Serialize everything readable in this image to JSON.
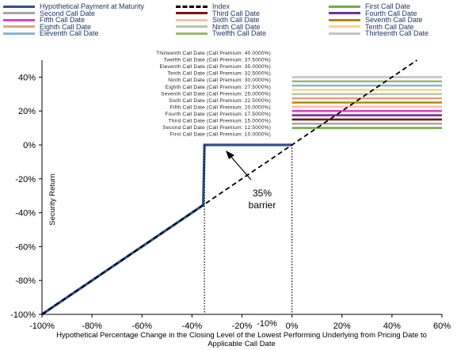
{
  "chart_data": {
    "type": "line",
    "title": "",
    "xlabel_lines": [
      "Hypothetical Percentage Change in the Closing Level of the Lowest Performing Underlying from Pricing Date to",
      "Applicable Call Date"
    ],
    "ylabel": "Security Return",
    "xlim": [
      -100,
      60
    ],
    "ylim": [
      -100,
      50
    ],
    "xticks": [
      "-100%",
      "-80%",
      "-60%",
      "-40%",
      "-20%",
      "0%",
      "20%",
      "40%",
      "60%"
    ],
    "xtick_values": [
      -100,
      -80,
      -60,
      -40,
      -20,
      0,
      20,
      40,
      60
    ],
    "extra_xtick": {
      "label": "-10%",
      "value": -10
    },
    "yticks": [
      "-100%",
      "-80%",
      "-60%",
      "-40%",
      "-20%",
      "0%",
      "20%",
      "40%"
    ],
    "ytick_values": [
      -100,
      -80,
      -60,
      -40,
      -20,
      0,
      20,
      40
    ],
    "barrier_label_lines": [
      "35%",
      "barrier"
    ],
    "barrier_x": -35,
    "series": [
      {
        "name": "Hypothetical Payment at Maturity",
        "color": "#2e4f8f",
        "style": "solid",
        "x": [
          -100,
          -35.5,
          -35,
          0
        ],
        "y": [
          -100,
          -35.5,
          0,
          0
        ]
      },
      {
        "name": "Index",
        "color": "#000000",
        "style": "dashed",
        "x": [
          -100,
          50
        ],
        "y": [
          -100,
          50
        ]
      },
      {
        "name": "First Call Date",
        "color": "#70ad47",
        "premium": 10.0,
        "label": "First Call Date (Call Premium: 10.0000%)"
      },
      {
        "name": "Second Call Date",
        "color": "#a5a5a5",
        "premium": 12.5,
        "label": "Second Call Date (Call Premium: 12.5000%)"
      },
      {
        "name": "Third Call Date",
        "color": "#7b1414",
        "premium": 15.0,
        "label": "Third Call Date (Call Premium: 15.0000%)"
      },
      {
        "name": "Fourth Call Date",
        "color": "#7030a0",
        "premium": 17.5,
        "label": "Fourth Call Date (Call Premium: 17.5000%)"
      },
      {
        "name": "Fifth Call Date",
        "color": "#e040c8",
        "premium": 20.0,
        "label": "Fifth Call Date (Call Premium: 20.0000%)"
      },
      {
        "name": "Sixth Call Date",
        "color": "#f4c3a4",
        "premium": 22.5,
        "label": "Sixth Call Date (Call Premium: 22.5000%)"
      },
      {
        "name": "Seventh Call Date",
        "color": "#b8860b",
        "premium": 25.0,
        "label": "Seventh Call Date (Call Premium: 25.0000%)"
      },
      {
        "name": "Eighth Call Date",
        "color": "#d9a77d",
        "premium": 27.5,
        "label": "Eighth Call Date (Call Premium: 27.5000%)"
      },
      {
        "name": "Ninth Call Date",
        "color": "#b7c7b0",
        "premium": 30.0,
        "label": "Ninth Call Date (Call Premium: 30.0000%)"
      },
      {
        "name": "Tenth Call Date",
        "color": "#f2d98c",
        "premium": 32.5,
        "label": "Tenth Call Date (Call Premium: 32.5000%)"
      },
      {
        "name": "Eleventh Call Date",
        "color": "#8eb3d9",
        "premium": 35.0,
        "label": "Eleventh Call Date (Call Premium: 35.0000%)"
      },
      {
        "name": "Twelfth Call Date",
        "color": "#9ab86d",
        "premium": 37.5,
        "label": "Twelfth Call Date (Call Premium: 37.5000%)"
      },
      {
        "name": "Thirteenth Call Date",
        "color": "#c3c3c3",
        "premium": 40.0,
        "label": "Thirteenth Call Date (Call Premium: 40.0000%)"
      }
    ],
    "call_line_x": [
      0,
      60
    ],
    "grid": false,
    "legend_position": "top"
  }
}
